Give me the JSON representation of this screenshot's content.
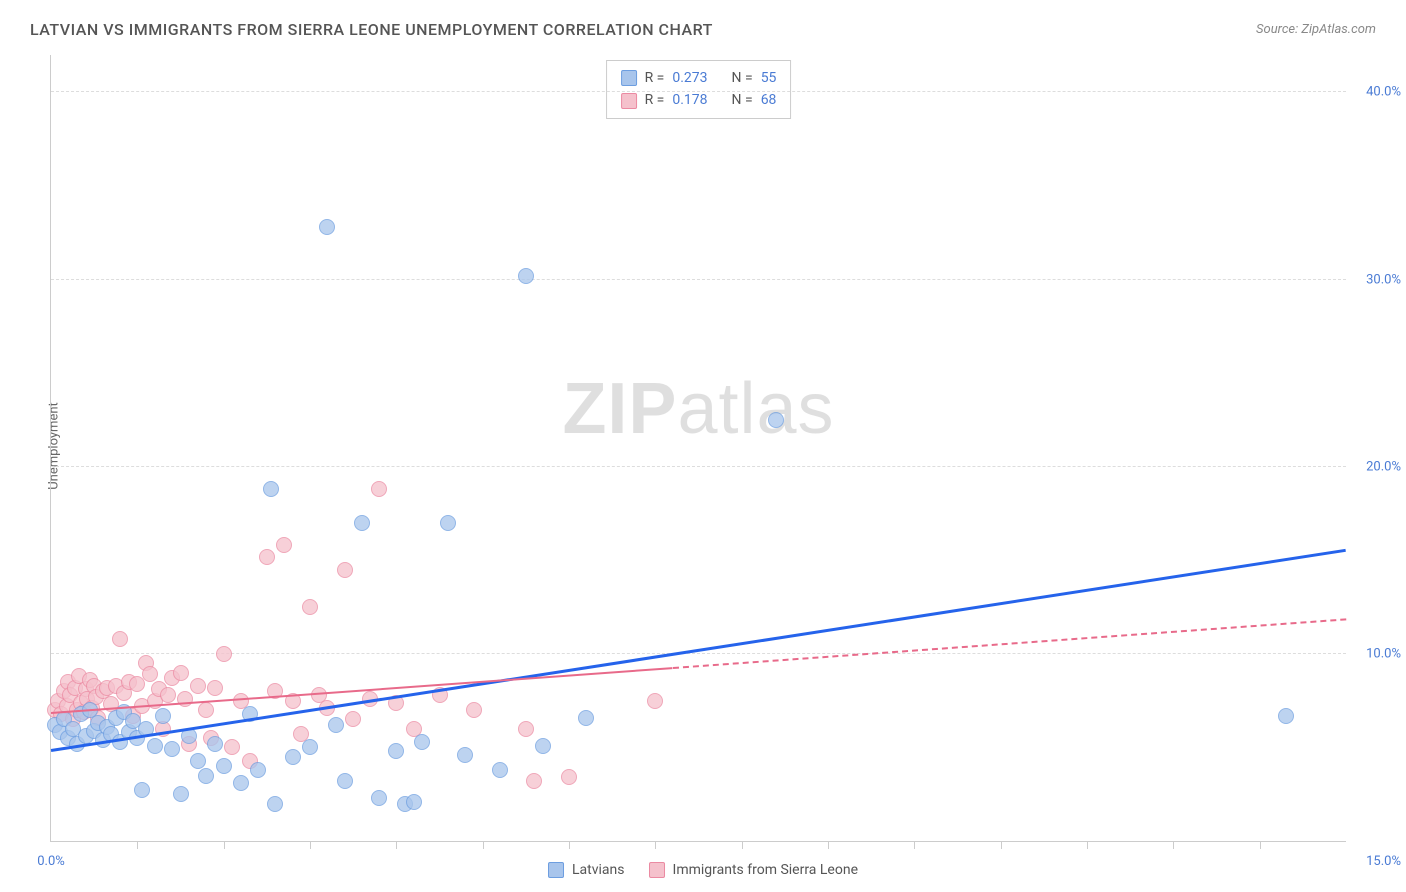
{
  "header": {
    "title": "LATVIAN VS IMMIGRANTS FROM SIERRA LEONE UNEMPLOYMENT CORRELATION CHART",
    "source": "Source: ZipAtlas.com"
  },
  "chart": {
    "type": "scatter",
    "ylabel": "Unemployment",
    "xlim": [
      0,
      15
    ],
    "ylim": [
      0,
      42
    ],
    "background_color": "#ffffff",
    "grid_color": "#dddddd",
    "axis_color": "#cccccc",
    "tick_label_color": "#4a7bd4",
    "tick_fontsize": 13,
    "yticks": [
      {
        "v": 10,
        "label": "10.0%"
      },
      {
        "v": 20,
        "label": "20.0%"
      },
      {
        "v": 30,
        "label": "30.0%"
      },
      {
        "v": 40,
        "label": "40.0%"
      }
    ],
    "xticks_minor": [
      1,
      2,
      3,
      4,
      5,
      6,
      7,
      8,
      9,
      10,
      11,
      12,
      13,
      14
    ],
    "xtick_labels": [
      {
        "v": 0,
        "label": "0.0%"
      },
      {
        "v": 15,
        "label": "15.0%"
      }
    ],
    "watermark": {
      "zip": "ZIP",
      "atlas": "atlas"
    },
    "series": [
      {
        "name": "Latvians",
        "marker_fill": "#a8c5ec",
        "marker_stroke": "#6d9ee0",
        "marker_opacity": 0.75,
        "marker_radius": 8,
        "trend_color": "#2563eb",
        "trend_width": 2.5,
        "trend": {
          "x1": 0,
          "y1": 4.8,
          "x2": 15,
          "y2": 15.5,
          "solid_until_x": 15
        },
        "R": "0.273",
        "N": "55",
        "points": [
          [
            0.05,
            6.2
          ],
          [
            0.1,
            5.8
          ],
          [
            0.15,
            6.5
          ],
          [
            0.2,
            5.5
          ],
          [
            0.25,
            6.0
          ],
          [
            0.3,
            5.2
          ],
          [
            0.35,
            6.8
          ],
          [
            0.4,
            5.6
          ],
          [
            0.45,
            7.0
          ],
          [
            0.5,
            5.9
          ],
          [
            0.55,
            6.3
          ],
          [
            0.6,
            5.4
          ],
          [
            0.65,
            6.1
          ],
          [
            0.7,
            5.7
          ],
          [
            0.75,
            6.6
          ],
          [
            0.8,
            5.3
          ],
          [
            0.85,
            6.9
          ],
          [
            0.9,
            5.8
          ],
          [
            0.95,
            6.4
          ],
          [
            1.0,
            5.5
          ],
          [
            1.05,
            2.7
          ],
          [
            1.1,
            6.0
          ],
          [
            1.2,
            5.1
          ],
          [
            1.3,
            6.7
          ],
          [
            1.4,
            4.9
          ],
          [
            1.5,
            2.5
          ],
          [
            1.6,
            5.6
          ],
          [
            1.7,
            4.3
          ],
          [
            1.8,
            3.5
          ],
          [
            1.9,
            5.2
          ],
          [
            2.0,
            4.0
          ],
          [
            2.2,
            3.1
          ],
          [
            2.3,
            6.8
          ],
          [
            2.4,
            3.8
          ],
          [
            2.55,
            18.8
          ],
          [
            2.6,
            2.0
          ],
          [
            2.8,
            4.5
          ],
          [
            3.0,
            5.0
          ],
          [
            3.2,
            32.8
          ],
          [
            3.3,
            6.2
          ],
          [
            3.4,
            3.2
          ],
          [
            3.6,
            17.0
          ],
          [
            3.8,
            2.3
          ],
          [
            4.0,
            4.8
          ],
          [
            4.1,
            2.0
          ],
          [
            4.2,
            2.1
          ],
          [
            4.3,
            5.3
          ],
          [
            4.6,
            17.0
          ],
          [
            4.8,
            4.6
          ],
          [
            5.2,
            3.8
          ],
          [
            5.5,
            30.2
          ],
          [
            5.7,
            5.1
          ],
          [
            6.2,
            6.6
          ],
          [
            8.4,
            22.5
          ],
          [
            14.3,
            6.7
          ]
        ]
      },
      {
        "name": "Immigrants from Sierra Leone",
        "marker_fill": "#f5c1cc",
        "marker_stroke": "#eb8aa2",
        "marker_opacity": 0.75,
        "marker_radius": 8,
        "trend_color": "#e86a8a",
        "trend_width": 2,
        "trend": {
          "x1": 0,
          "y1": 6.8,
          "x2": 15,
          "y2": 11.8,
          "solid_until_x": 7.2
        },
        "R": "0.178",
        "N": "68",
        "points": [
          [
            0.05,
            7.0
          ],
          [
            0.08,
            7.5
          ],
          [
            0.12,
            6.8
          ],
          [
            0.15,
            8.0
          ],
          [
            0.18,
            7.2
          ],
          [
            0.2,
            8.5
          ],
          [
            0.22,
            7.8
          ],
          [
            0.25,
            6.5
          ],
          [
            0.28,
            8.2
          ],
          [
            0.3,
            7.0
          ],
          [
            0.32,
            8.8
          ],
          [
            0.35,
            7.4
          ],
          [
            0.38,
            6.9
          ],
          [
            0.4,
            8.1
          ],
          [
            0.42,
            7.6
          ],
          [
            0.45,
            8.6
          ],
          [
            0.48,
            7.1
          ],
          [
            0.5,
            8.3
          ],
          [
            0.52,
            7.7
          ],
          [
            0.55,
            6.6
          ],
          [
            0.6,
            8.0
          ],
          [
            0.65,
            8.2
          ],
          [
            0.7,
            7.3
          ],
          [
            0.75,
            8.3
          ],
          [
            0.8,
            10.8
          ],
          [
            0.85,
            7.9
          ],
          [
            0.9,
            8.5
          ],
          [
            0.95,
            6.7
          ],
          [
            1.0,
            8.4
          ],
          [
            1.05,
            7.2
          ],
          [
            1.1,
            9.5
          ],
          [
            1.15,
            8.9
          ],
          [
            1.2,
            7.5
          ],
          [
            1.25,
            8.1
          ],
          [
            1.3,
            6.0
          ],
          [
            1.35,
            7.8
          ],
          [
            1.4,
            8.7
          ],
          [
            1.5,
            9.0
          ],
          [
            1.55,
            7.6
          ],
          [
            1.6,
            5.2
          ],
          [
            1.7,
            8.3
          ],
          [
            1.8,
            7.0
          ],
          [
            1.85,
            5.5
          ],
          [
            1.9,
            8.2
          ],
          [
            2.0,
            10.0
          ],
          [
            2.1,
            5.0
          ],
          [
            2.2,
            7.5
          ],
          [
            2.3,
            4.3
          ],
          [
            2.5,
            15.2
          ],
          [
            2.6,
            8.0
          ],
          [
            2.7,
            15.8
          ],
          [
            2.8,
            7.5
          ],
          [
            2.9,
            5.7
          ],
          [
            3.0,
            12.5
          ],
          [
            3.1,
            7.8
          ],
          [
            3.2,
            7.1
          ],
          [
            3.4,
            14.5
          ],
          [
            3.5,
            6.5
          ],
          [
            3.7,
            7.6
          ],
          [
            3.8,
            18.8
          ],
          [
            4.0,
            7.4
          ],
          [
            4.2,
            6.0
          ],
          [
            4.5,
            7.8
          ],
          [
            4.9,
            7.0
          ],
          [
            5.5,
            6.0
          ],
          [
            5.6,
            3.2
          ],
          [
            6.0,
            3.4
          ],
          [
            7.0,
            7.5
          ]
        ]
      }
    ],
    "legend_top": {
      "R_label": "R =",
      "N_label": "N ="
    },
    "legend_bottom": {
      "label1": "Latvians",
      "label2": "Immigrants from Sierra Leone"
    }
  }
}
